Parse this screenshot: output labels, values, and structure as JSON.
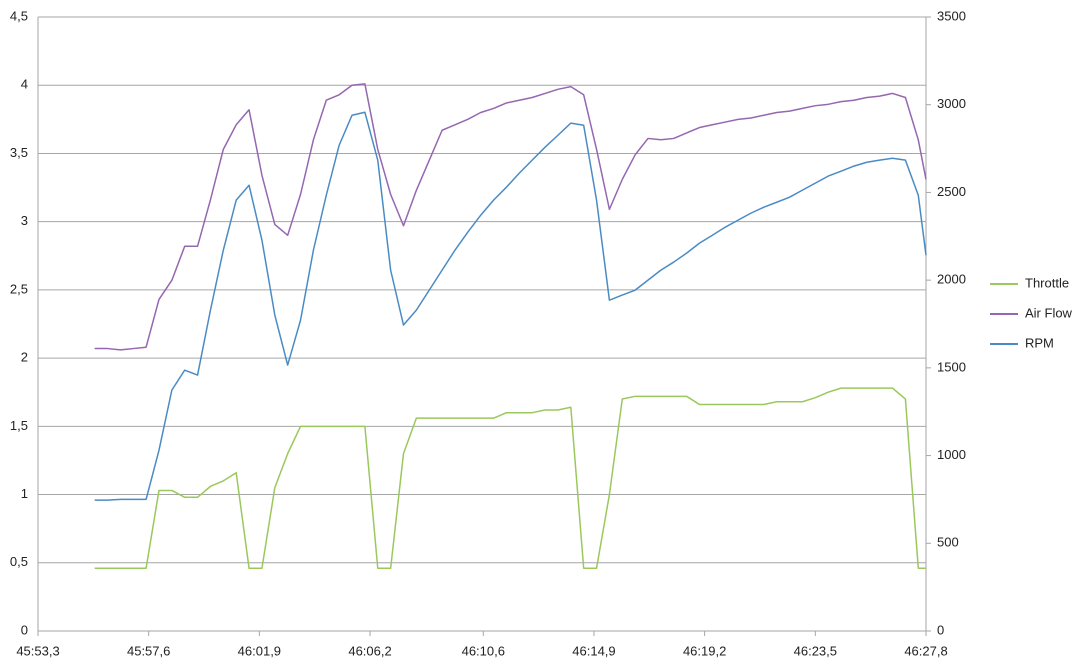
{
  "chart_data": {
    "type": "line",
    "x": [
      2755.5,
      2756,
      2756.5,
      2757,
      2757.5,
      2758,
      2758.5,
      2759,
      2759.5,
      2760,
      2760.5,
      2761,
      2761.5,
      2762,
      2762.5,
      2763,
      2763.5,
      2764,
      2764.5,
      2765,
      2765.5,
      2766,
      2766.5,
      2767,
      2767.5,
      2768,
      2768.5,
      2769,
      2769.5,
      2770,
      2770.5,
      2771,
      2771.5,
      2772,
      2772.5,
      2773,
      2773.5,
      2774,
      2774.5,
      2775,
      2775.5,
      2776,
      2776.5,
      2777,
      2777.5,
      2778,
      2778.5,
      2779,
      2779.5,
      2780,
      2780.5,
      2781,
      2781.5,
      2782,
      2782.5,
      2783,
      2783.5,
      2784,
      2784.5,
      2785,
      2785.5,
      2786,
      2786.5,
      2787,
      2787.5,
      2787.8
    ],
    "xlim": [
      2753.3,
      2787.8
    ],
    "xticks": [
      {
        "value": 2753.3,
        "label": "45:53,3"
      },
      {
        "value": 2757.6,
        "label": "45:57,6"
      },
      {
        "value": 2761.9,
        "label": "46:01,9"
      },
      {
        "value": 2766.2,
        "label": "46:06,2"
      },
      {
        "value": 2770.6,
        "label": "46:10,6"
      },
      {
        "value": 2774.9,
        "label": "46:14,9"
      },
      {
        "value": 2779.2,
        "label": "46:19,2"
      },
      {
        "value": 2783.5,
        "label": "46:23,5"
      },
      {
        "value": 2787.8,
        "label": "46:27,8"
      }
    ],
    "ylim": [
      0,
      4.5
    ],
    "yticks": [
      0,
      {
        "value": 0.5,
        "label": "0,5"
      },
      1,
      {
        "value": 1.5,
        "label": "1,5"
      },
      2,
      {
        "value": 2.5,
        "label": "2,5"
      },
      3,
      {
        "value": 3.5,
        "label": "3,5"
      },
      4,
      {
        "value": 4.5,
        "label": "4,5"
      }
    ],
    "y2lim": [
      0,
      3500
    ],
    "y2ticks": [
      0,
      500,
      1000,
      1500,
      2000,
      2500,
      3000,
      3500
    ],
    "grid": true,
    "legend": "right",
    "series": [
      {
        "name": "Throttle",
        "color": "#9bc85b",
        "values": [
          0.46,
          0.46,
          0.46,
          0.46,
          0.46,
          1.03,
          1.03,
          0.98,
          0.98,
          1.06,
          1.1,
          1.16,
          0.46,
          0.46,
          1.05,
          1.3,
          1.5,
          1.5,
          1.5,
          1.5,
          1.5,
          1.5,
          0.46,
          0.46,
          1.3,
          1.56,
          1.56,
          1.56,
          1.56,
          1.56,
          1.56,
          1.56,
          1.6,
          1.6,
          1.6,
          1.62,
          1.62,
          1.64,
          0.46,
          0.46,
          1.0,
          1.7,
          1.72,
          1.72,
          1.72,
          1.72,
          1.72,
          1.66,
          1.66,
          1.66,
          1.66,
          1.66,
          1.66,
          1.68,
          1.68,
          1.68,
          1.71,
          1.75,
          1.78,
          1.78,
          1.78,
          1.78,
          1.78,
          1.7,
          0.46,
          0.46
        ]
      },
      {
        "name": "Air Flow",
        "color": "#9467b0",
        "values": [
          2.07,
          2.07,
          2.06,
          2.07,
          2.08,
          2.43,
          2.57,
          2.82,
          2.82,
          3.16,
          3.53,
          3.71,
          3.82,
          3.34,
          2.98,
          2.9,
          3.2,
          3.6,
          3.89,
          3.93,
          4.0,
          4.01,
          3.53,
          3.2,
          2.97,
          3.23,
          3.45,
          3.67,
          3.71,
          3.75,
          3.8,
          3.83,
          3.87,
          3.89,
          3.91,
          3.94,
          3.97,
          3.99,
          3.93,
          3.53,
          3.09,
          3.31,
          3.49,
          3.61,
          3.6,
          3.61,
          3.65,
          3.69,
          3.71,
          3.73,
          3.75,
          3.76,
          3.78,
          3.8,
          3.81,
          3.83,
          3.85,
          3.86,
          3.88,
          3.89,
          3.91,
          3.92,
          3.94,
          3.91,
          3.6,
          3.31
        ]
      },
      {
        "name": "RPM",
        "color": "#4a8bc4",
        "axis": "y2",
        "values": [
          746,
          746,
          750,
          750,
          750,
          1030,
          1373,
          1487,
          1459,
          1829,
          2171,
          2456,
          2541,
          2228,
          1801,
          1516,
          1772,
          2171,
          2484,
          2769,
          2940,
          2957,
          2684,
          2057,
          1744,
          1829,
          1943,
          2057,
          2171,
          2274,
          2370,
          2456,
          2530,
          2610,
          2684,
          2758,
          2826,
          2895,
          2883,
          2456,
          1886,
          1915,
          1943,
          2000,
          2057,
          2103,
          2154,
          2211,
          2256,
          2302,
          2342,
          2382,
          2416,
          2444,
          2473,
          2513,
          2553,
          2593,
          2621,
          2650,
          2672,
          2684,
          2695,
          2684,
          2484,
          2142
        ]
      }
    ]
  }
}
